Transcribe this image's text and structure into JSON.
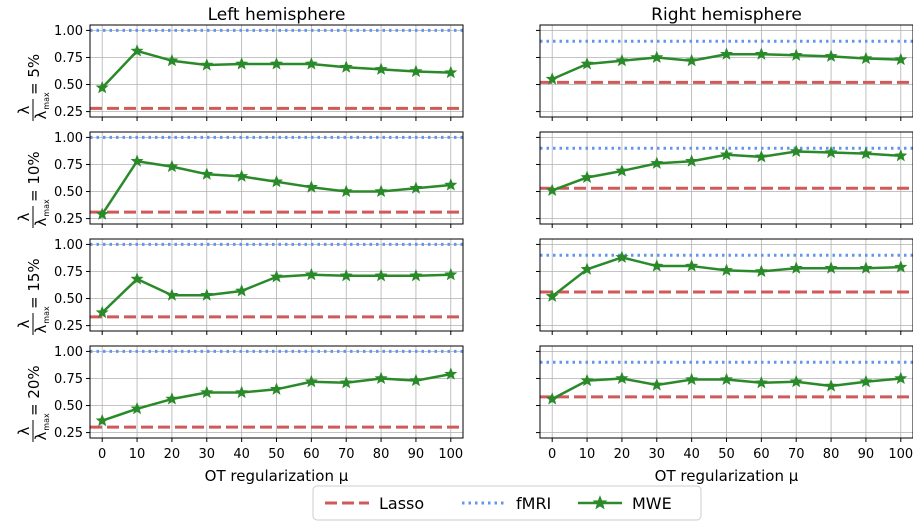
{
  "chart_data": {
    "type": "line",
    "columns": [
      "Left hemisphere",
      "Right hemisphere"
    ],
    "row_labels": [
      "5%",
      "10%",
      "15%",
      "20%"
    ],
    "ylabel_prefix": "= ",
    "xlabel": "OT regularization μ",
    "x": [
      0,
      10,
      20,
      30,
      40,
      50,
      60,
      70,
      80,
      90,
      100
    ],
    "xticks": [
      "0",
      "10",
      "20",
      "30",
      "40",
      "50",
      "60",
      "70",
      "80",
      "90",
      "100"
    ],
    "yticks": [
      "0.25",
      "0.50",
      "0.75",
      "1.00"
    ],
    "ylim": [
      0.2,
      1.05
    ],
    "grid": true,
    "legend_position": "bottom-center",
    "legend": [
      {
        "name": "Lasso",
        "style": "dashed",
        "color": "#d05a5a"
      },
      {
        "name": "fMRI",
        "style": "dotted",
        "color": "#6495ed"
      },
      {
        "name": "MWE",
        "style": "solid-star",
        "color": "#2a8a2a"
      }
    ],
    "panels": [
      {
        "row": "5%",
        "column": "Left hemisphere",
        "lasso": 0.28,
        "fmri": 1.0,
        "mwe": [
          0.47,
          0.81,
          0.72,
          0.68,
          0.69,
          0.69,
          0.69,
          0.66,
          0.64,
          0.62,
          0.61
        ]
      },
      {
        "row": "5%",
        "column": "Right hemisphere",
        "lasso": 0.52,
        "fmri": 0.9,
        "mwe": [
          0.55,
          0.69,
          0.72,
          0.75,
          0.72,
          0.78,
          0.78,
          0.77,
          0.76,
          0.74,
          0.73
        ]
      },
      {
        "row": "10%",
        "column": "Left hemisphere",
        "lasso": 0.31,
        "fmri": 1.0,
        "mwe": [
          0.29,
          0.78,
          0.73,
          0.66,
          0.64,
          0.59,
          0.54,
          0.5,
          0.5,
          0.53,
          0.56
        ]
      },
      {
        "row": "10%",
        "column": "Right hemisphere",
        "lasso": 0.53,
        "fmri": 0.9,
        "mwe": [
          0.51,
          0.63,
          0.69,
          0.76,
          0.78,
          0.84,
          0.82,
          0.87,
          0.86,
          0.85,
          0.83
        ]
      },
      {
        "row": "15%",
        "column": "Left hemisphere",
        "lasso": 0.33,
        "fmri": 1.0,
        "mwe": [
          0.37,
          0.68,
          0.53,
          0.53,
          0.57,
          0.7,
          0.72,
          0.71,
          0.71,
          0.71,
          0.72
        ]
      },
      {
        "row": "15%",
        "column": "Right hemisphere",
        "lasso": 0.56,
        "fmri": 0.9,
        "mwe": [
          0.52,
          0.77,
          0.88,
          0.8,
          0.8,
          0.76,
          0.75,
          0.78,
          0.78,
          0.78,
          0.79
        ]
      },
      {
        "row": "20%",
        "column": "Left hemisphere",
        "lasso": 0.3,
        "fmri": 1.0,
        "mwe": [
          0.36,
          0.47,
          0.56,
          0.62,
          0.62,
          0.65,
          0.72,
          0.71,
          0.75,
          0.73,
          0.79
        ]
      },
      {
        "row": "20%",
        "column": "Right hemisphere",
        "lasso": 0.58,
        "fmri": 0.9,
        "mwe": [
          0.56,
          0.73,
          0.75,
          0.69,
          0.74,
          0.74,
          0.71,
          0.72,
          0.68,
          0.72,
          0.75
        ]
      }
    ]
  }
}
